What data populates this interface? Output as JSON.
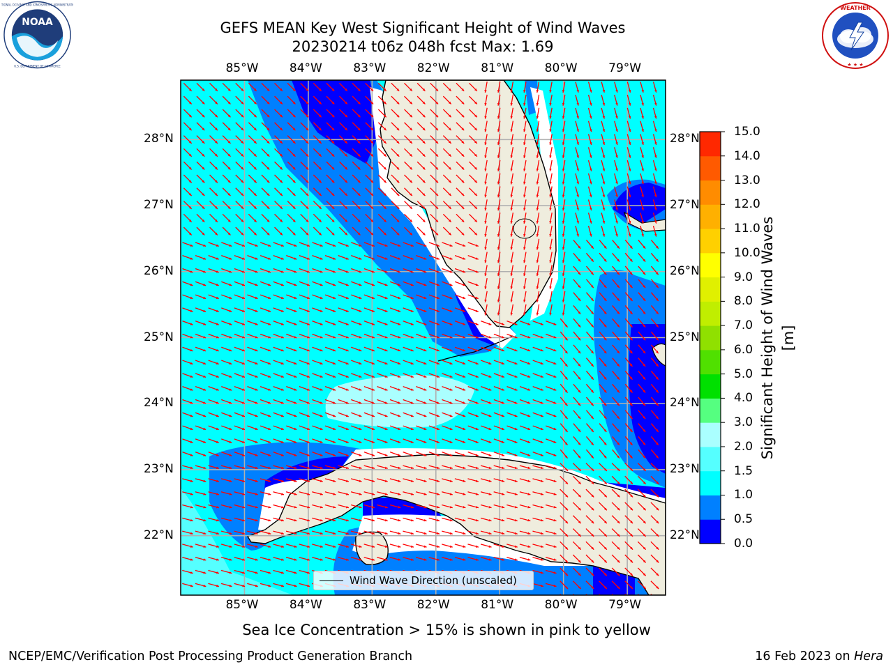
{
  "title": {
    "line1": "GEFS MEAN Key West Significant Height of Wind Waves",
    "line2": "20230214 t06z 048h fcst   Max: 1.69"
  },
  "logos": {
    "noaa_text": "NOAA",
    "noaa_ring": "NATIONAL OCEANIC AND ATMOSPHERIC ADMINISTRATION · U.S. DEPARTMENT OF COMMERCE",
    "nws_ring": "NATIONAL WEATHER SERVICE"
  },
  "map": {
    "lon_ticks": [
      "85°W",
      "84°W",
      "83°W",
      "82°W",
      "81°W",
      "80°W",
      "79°W"
    ],
    "lat_ticks": [
      "28°N",
      "27°N",
      "26°N",
      "25°N",
      "24°N",
      "23°N",
      "22°N"
    ],
    "lon_extent": [
      -86.0,
      -78.4
    ],
    "lat_extent": [
      21.1,
      28.9
    ],
    "grid": true,
    "legend_label": "Wind Wave Direction (unscaled)",
    "arrow_color": "#ff0000",
    "land_color": "#efedde",
    "wave_field_colors": {
      "lt_0_5": "#0000ff",
      "0_5_to_1_0": "#0080ff",
      "1_0_to_1_5": "#00ffff",
      "1_5_to_2_0": "#aaffff"
    }
  },
  "colorbar": {
    "title": "Significant Height of Wind Waves [m]",
    "labels": [
      "0.0",
      "0.5",
      "1.0",
      "1.5",
      "2.0",
      "3.0",
      "4.0",
      "5.0",
      "6.0",
      "7.0",
      "8.0",
      "9.0",
      "10.0",
      "11.0",
      "12.0",
      "13.0",
      "14.0",
      "15.0"
    ],
    "colors": [
      "#0000ff",
      "#0080ff",
      "#00ffff",
      "#55ffff",
      "#aaffff",
      "#55ff80",
      "#00e000",
      "#50e000",
      "#90e000",
      "#c0ee00",
      "#e0f000",
      "#ffff00",
      "#ffd000",
      "#ffb000",
      "#ff8c00",
      "#ff5a00",
      "#ff2800"
    ]
  },
  "footnote": "Sea Ice Concentration > 15% is shown in pink to yellow",
  "footer": {
    "left": "NCEP/EMC/Verification Post Processing Product Generation Branch",
    "right_date": "16 Feb 2023 on ",
    "right_host": "Hera"
  }
}
